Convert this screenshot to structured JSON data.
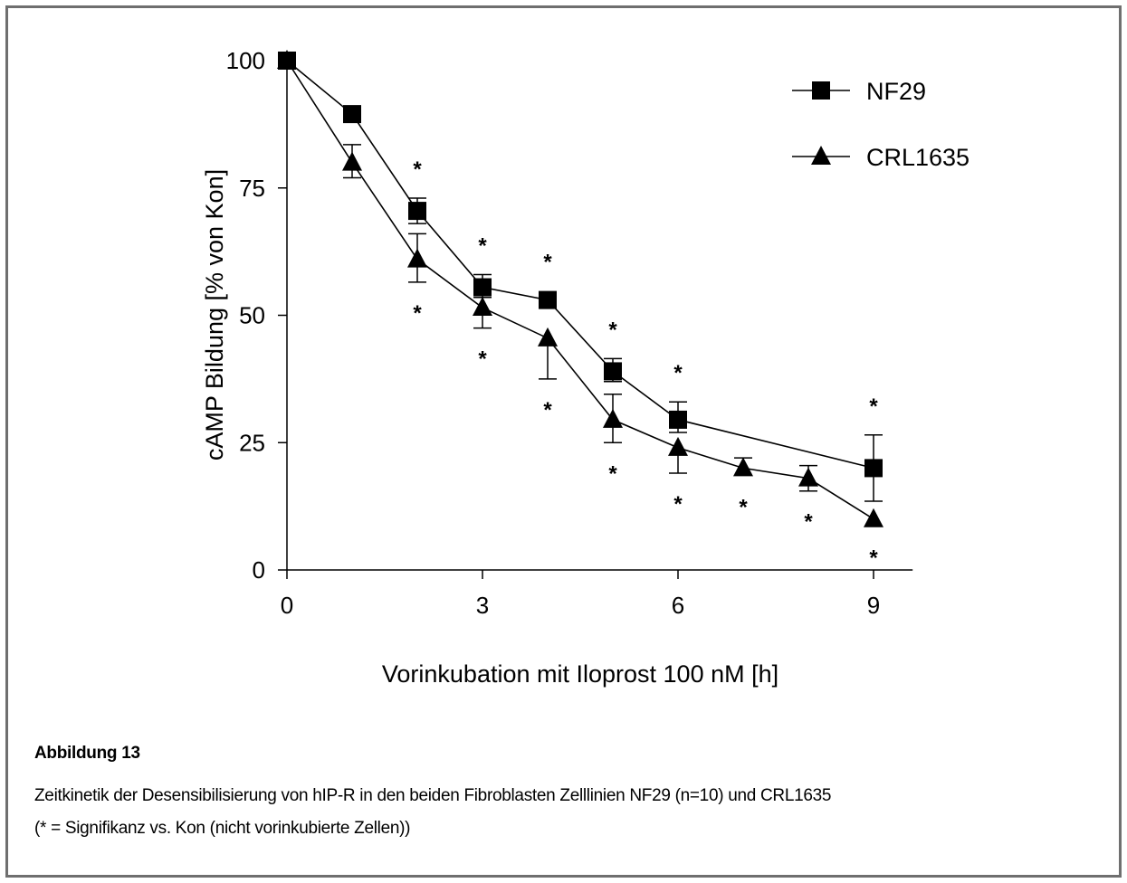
{
  "caption": {
    "title": "Abbildung 13",
    "line1": "Zeitkinetik der Desensibilisierung von hIP-R in den beiden Fibroblasten Zelllinien NF29 (n=10) und CRL1635",
    "line2": "(* = Signifikanz vs. Kon (nicht vorinkubierte Zellen))"
  },
  "chart_data": {
    "type": "line",
    "xlabel": "Vorinkubation mit Iloprost 100 nM [h]",
    "ylabel": "cAMP Bildung [% von Kon]",
    "xlim": [
      0,
      9.6
    ],
    "ylim": [
      0,
      100
    ],
    "xticks": [
      0,
      3,
      6,
      9
    ],
    "yticks": [
      0,
      25,
      50,
      75,
      100
    ],
    "legend_position": "top-right",
    "significance_marker": "*",
    "series": [
      {
        "name": "NF29",
        "marker": "square",
        "color": "#000000",
        "x": [
          0,
          1,
          2,
          3,
          4,
          5,
          6,
          9
        ],
        "y": [
          100,
          89.5,
          70.5,
          55.5,
          53,
          39,
          29.5,
          20
        ],
        "err_upper": [
          0,
          0.5,
          2.5,
          2.5,
          0,
          2.5,
          3.5,
          6.5
        ],
        "err_lower": [
          0,
          0.5,
          2.5,
          2,
          0,
          2,
          2.5,
          6.5
        ],
        "significant": [
          false,
          false,
          true,
          true,
          true,
          true,
          true,
          true
        ]
      },
      {
        "name": "CRL1635",
        "marker": "triangle",
        "color": "#000000",
        "x": [
          0,
          1,
          2,
          3,
          4,
          5,
          6,
          7,
          8,
          9
        ],
        "y": [
          100,
          80,
          61,
          51.5,
          45.5,
          29.5,
          24,
          20,
          18,
          10
        ],
        "err_upper": [
          0,
          3.5,
          5,
          2,
          0,
          5,
          0,
          2,
          2.5,
          0
        ],
        "err_lower": [
          0,
          3,
          4.5,
          4,
          8,
          4.5,
          5,
          0,
          2.5,
          0
        ],
        "significant": [
          false,
          false,
          true,
          true,
          true,
          true,
          true,
          true,
          true,
          true
        ]
      }
    ]
  }
}
